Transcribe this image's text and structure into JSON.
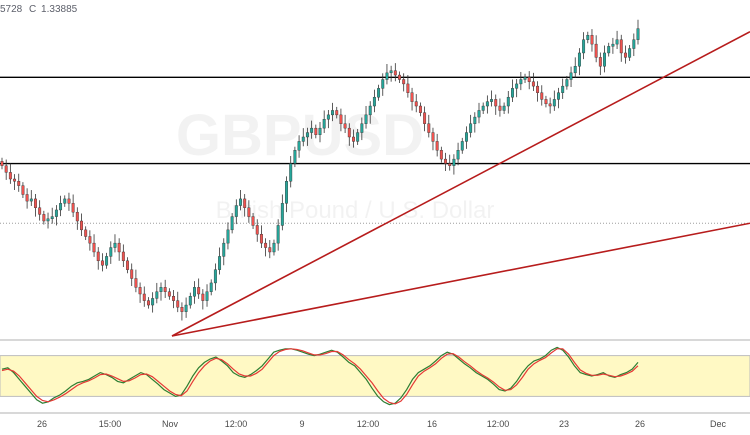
{
  "header": {
    "ohlc_fragment": "5728",
    "close_label": "C",
    "close_value": "1.33885"
  },
  "watermark": {
    "symbol": "GBPUSD",
    "description": "British Pound / U.S. Dollar"
  },
  "colors": {
    "up": "#26a69a",
    "down": "#ef5350",
    "trend": "#b71c1c",
    "level": "#000000",
    "stoch_k": "#2e7d32",
    "stoch_d": "#e53935",
    "stoch_band": "#fff9c4",
    "stoch_band_border": "#bdbdbd"
  },
  "chart_data": [
    {
      "type": "candlestick",
      "symbol": "GBPUSD",
      "y_range_approx": [
        1.269,
        1.34
      ],
      "x_tick_labels": [
        "26",
        "15:00",
        "Nov",
        "12:00",
        "9",
        "12:00",
        "16",
        "12:00",
        "23",
        "26",
        "Dec"
      ],
      "horizontal_levels": [
        1.3275,
        1.308
      ],
      "dotted_level": 1.2945,
      "trendlines": [
        {
          "from": [
            "Nov",
            1.269
          ],
          "to": [
            "end",
            1.3378
          ]
        },
        {
          "from": [
            "Nov",
            1.269
          ],
          "to": [
            "end",
            1.2945
          ]
        }
      ],
      "candles_close_approx": [
        1.3075,
        1.306,
        1.3045,
        1.304,
        1.303,
        1.301,
        1.2995,
        1.3,
        1.298,
        1.2965,
        1.295,
        1.2955,
        1.296,
        1.2975,
        1.299,
        1.3,
        1.299,
        1.297,
        1.295,
        1.293,
        1.2915,
        1.29,
        1.288,
        1.286,
        1.285,
        1.287,
        1.289,
        1.29,
        1.288,
        1.286,
        1.284,
        1.282,
        1.28,
        1.2785,
        1.277,
        1.276,
        1.2775,
        1.279,
        1.28,
        1.279,
        1.278,
        1.277,
        1.2755,
        1.2745,
        1.276,
        1.278,
        1.28,
        1.2785,
        1.277,
        1.279,
        1.281,
        1.284,
        1.287,
        1.29,
        1.293,
        1.296,
        1.2985,
        1.3,
        1.298,
        1.296,
        1.294,
        1.292,
        1.29,
        1.289,
        1.288,
        1.29,
        1.294,
        1.299,
        1.304,
        1.308,
        1.311,
        1.313,
        1.314,
        1.315,
        1.316,
        1.3145,
        1.316,
        1.318,
        1.319,
        1.32,
        1.319,
        1.317,
        1.316,
        1.314,
        1.313,
        1.315,
        1.317,
        1.319,
        1.321,
        1.323,
        1.325,
        1.327,
        1.3285,
        1.329,
        1.328,
        1.327,
        1.326,
        1.324,
        1.322,
        1.321,
        1.3195,
        1.317,
        1.315,
        1.313,
        1.311,
        1.309,
        1.308,
        1.3075,
        1.309,
        1.311,
        1.313,
        1.315,
        1.317,
        1.3185,
        1.32,
        1.321,
        1.322,
        1.3225,
        1.321,
        1.32,
        1.321,
        1.323,
        1.325,
        1.326,
        1.327,
        1.3275,
        1.3265,
        1.3255,
        1.324,
        1.3225,
        1.3215,
        1.321,
        1.3225,
        1.324,
        1.3255,
        1.327,
        1.3285,
        1.33,
        1.333,
        1.336,
        1.337,
        1.335,
        1.332,
        1.33,
        1.333,
        1.3345,
        1.335,
        1.336,
        1.333,
        1.332,
        1.334,
        1.336,
        1.3385
      ]
    },
    {
      "type": "line",
      "indicator": "stochastic",
      "y_range": [
        0,
        100
      ],
      "band": [
        20,
        80
      ],
      "series": [
        {
          "values": [
            60,
            62,
            55,
            45,
            35,
            25,
            15,
            10,
            12,
            18,
            22,
            28,
            35,
            40,
            42,
            45,
            50,
            55,
            52,
            48,
            42,
            40,
            45,
            50,
            55,
            52,
            45,
            38,
            30,
            25,
            20,
            22,
            35,
            50,
            62,
            70,
            75,
            78,
            72,
            65,
            55,
            50,
            48,
            52,
            58,
            65,
            75,
            85,
            88,
            90,
            90,
            88,
            85,
            82,
            80,
            82,
            85,
            88,
            85,
            78,
            70,
            65,
            55,
            45,
            32,
            20,
            12,
            8,
            10,
            18,
            30,
            45,
            55,
            60,
            65,
            72,
            80,
            85,
            82,
            75,
            68,
            62,
            55,
            50,
            45,
            38,
            30,
            28,
            32,
            42,
            55,
            65,
            72,
            75,
            80,
            88,
            92,
            88,
            78,
            65,
            55,
            52,
            50,
            52,
            55,
            50,
            48,
            52,
            55,
            60,
            70
          ]
        },
        {
          "values": [
            58,
            60,
            57,
            50,
            40,
            30,
            20,
            14,
            12,
            15,
            19,
            24,
            30,
            36,
            40,
            43,
            47,
            52,
            53,
            50,
            46,
            42,
            43,
            47,
            52,
            53,
            49,
            42,
            35,
            28,
            23,
            21,
            28,
            42,
            55,
            65,
            72,
            76,
            74,
            68,
            60,
            53,
            50,
            50,
            54,
            60,
            70,
            80,
            86,
            89,
            90,
            89,
            87,
            84,
            81,
            81,
            83,
            86,
            86,
            81,
            74,
            68,
            60,
            50,
            40,
            28,
            17,
            11,
            9,
            13,
            23,
            37,
            50,
            57,
            62,
            68,
            76,
            82,
            83,
            78,
            71,
            65,
            58,
            52,
            47,
            41,
            34,
            29,
            30,
            37,
            48,
            60,
            68,
            73,
            77,
            84,
            90,
            90,
            82,
            70,
            59,
            54,
            51,
            51,
            53,
            51,
            49,
            50,
            53,
            57,
            65
          ]
        }
      ]
    }
  ]
}
